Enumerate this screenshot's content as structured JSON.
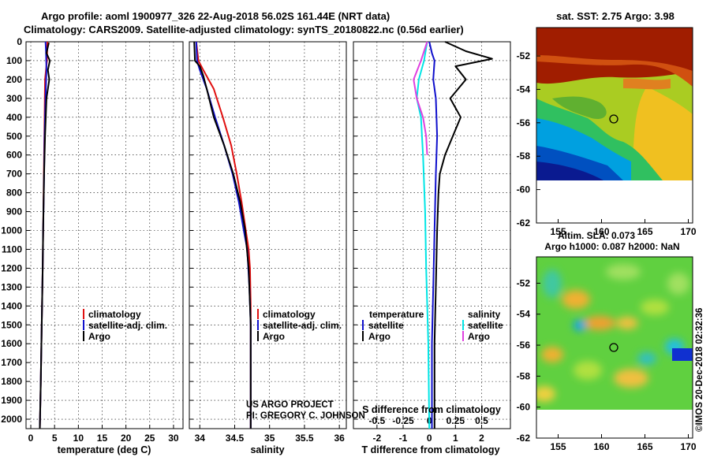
{
  "title": {
    "line1": "Argo profile: aoml 1900977_326 22-Aug-2018 56.02S 161.44E (NRT data)",
    "line2": "Climatology: CARS2009. Satellite-adjusted climatology: synTS_20180822.nc (0.56d earlier)"
  },
  "colors": {
    "climatology": "#e01010",
    "satellite": "#1010cc",
    "argo": "#000000",
    "satellite_salinity": "#00e5e5",
    "argo_salinity": "#e040e0"
  },
  "chart_data": [
    {
      "type": "line",
      "panel": "temperature",
      "xlabel": "temperature (deg C)",
      "ylabel": "",
      "xlim": [
        -1,
        32
      ],
      "ylim": [
        2050,
        0
      ],
      "xticks": [
        0,
        5,
        10,
        15,
        20,
        25,
        30
      ],
      "yticks": [
        0,
        100,
        200,
        300,
        400,
        500,
        600,
        700,
        800,
        900,
        1000,
        1100,
        1200,
        1300,
        1400,
        1500,
        1600,
        1700,
        1800,
        1900,
        2000
      ],
      "legend": [
        "climatology",
        "satellite-adj. clim.",
        "Argo"
      ],
      "series": [
        {
          "name": "climatology",
          "x": [
            3.5,
            3.4,
            3.0,
            2.9,
            2.8,
            2.7,
            2.6,
            2.5,
            2.3,
            2.1,
            1.9
          ],
          "y": [
            0,
            100,
            200,
            400,
            600,
            800,
            1000,
            1200,
            1500,
            1800,
            2050
          ]
        },
        {
          "name": "satellite-adj. clim.",
          "x": [
            3.1,
            3.2,
            3.3,
            3.1,
            2.9,
            2.8,
            2.6,
            2.5,
            2.3,
            2.1,
            1.9
          ],
          "y": [
            0,
            50,
            150,
            300,
            500,
            700,
            1000,
            1200,
            1500,
            1800,
            2050
          ]
        },
        {
          "name": "Argo",
          "x": [
            3.8,
            3.3,
            4.0,
            3.6,
            3.9,
            3.3,
            3.0,
            2.8,
            2.6,
            2.5,
            2.3,
            2.1,
            1.9
          ],
          "y": [
            5,
            60,
            100,
            150,
            200,
            300,
            500,
            700,
            1000,
            1200,
            1500,
            1800,
            2050
          ]
        }
      ]
    },
    {
      "type": "line",
      "panel": "salinity",
      "xlabel": "salinity",
      "ylabel": "",
      "xlim": [
        33.85,
        36.1
      ],
      "ylim": [
        2050,
        0
      ],
      "xticks": [
        34,
        34.5,
        35,
        35.5,
        36
      ],
      "xtick_labels": [
        "34",
        "34.5",
        "35",
        "35.5",
        "36"
      ],
      "legend": [
        "climatology",
        "satellite-adj. clim.",
        "Argo"
      ],
      "annotation": [
        "US ARGO PROJECT",
        "PI: GREGORY C. JOHNSON"
      ],
      "series": [
        {
          "name": "climatology",
          "x": [
            33.95,
            33.98,
            34.05,
            34.2,
            34.33,
            34.45,
            34.53,
            34.6,
            34.66,
            34.7,
            34.72,
            34.73,
            34.73,
            34.73
          ],
          "y": [
            0,
            100,
            150,
            250,
            400,
            550,
            700,
            850,
            1000,
            1100,
            1200,
            1400,
            1700,
            2050
          ]
        },
        {
          "name": "satellite-adj. clim.",
          "x": [
            33.95,
            33.96,
            34.0,
            34.1,
            34.22,
            34.35,
            34.47,
            34.56,
            34.63,
            34.68,
            34.71,
            34.73,
            34.73
          ],
          "y": [
            0,
            100,
            150,
            250,
            400,
            550,
            700,
            850,
            1000,
            1100,
            1300,
            1500,
            2050
          ]
        },
        {
          "name": "Argo",
          "x": [
            33.92,
            33.93,
            34.0,
            34.05,
            34.1,
            34.2,
            34.35,
            34.48,
            34.58,
            34.65,
            34.7,
            34.73,
            34.73
          ],
          "y": [
            0,
            100,
            130,
            180,
            250,
            400,
            550,
            700,
            850,
            1000,
            1200,
            1500,
            2050
          ]
        }
      ]
    },
    {
      "type": "line",
      "panel": "difference",
      "xlabel": "T difference from climatology",
      "xlabel_top": "S difference from climatology",
      "ylabel": "",
      "xlim": [
        -2.9,
        3.1
      ],
      "ylim": [
        2050,
        0
      ],
      "xticks": [
        -2,
        -1,
        0,
        1,
        2
      ],
      "xtick_labels": [
        "-2",
        "-1",
        "0",
        "1",
        "2"
      ],
      "s_xticks": [
        -0.5,
        -0.25,
        0,
        0.25,
        0.5
      ],
      "s_xtick_labels": [
        "-0.5",
        "-0.25",
        "0",
        "0.25",
        "0.5"
      ],
      "s_scale": 4,
      "legend_temperature_title": "temperature",
      "legend_salinity_title": "salinity",
      "legend_temperature": [
        "satellite",
        "Argo"
      ],
      "legend_salinity": [
        "satellite",
        "Argo"
      ],
      "series": [
        {
          "name": "temperature satellite",
          "x": [
            0.0,
            0.1,
            0.2,
            0.15,
            0.25,
            0.3,
            0.25,
            0.2,
            0.15,
            0.1,
            0.1
          ],
          "y": [
            0,
            60,
            100,
            200,
            300,
            500,
            700,
            1000,
            1300,
            1600,
            2050
          ]
        },
        {
          "name": "temperature Argo",
          "x": [
            0.6,
            1.4,
            2.4,
            1.0,
            1.4,
            0.8,
            1.2,
            0.9,
            0.6,
            0.4,
            0.35,
            0.3,
            0.25,
            0.2,
            0.2
          ],
          "y": [
            0,
            50,
            90,
            130,
            200,
            300,
            400,
            500,
            600,
            700,
            800,
            1000,
            1300,
            1600,
            2050
          ]
        },
        {
          "name": "salinity satellite",
          "x": [
            -0.02,
            -0.05,
            -0.1,
            -0.12,
            -0.08,
            -0.06,
            -0.04,
            -0.03,
            -0.01,
            0.0
          ],
          "y": [
            0,
            100,
            200,
            300,
            400,
            600,
            900,
            1200,
            1600,
            2050
          ]
        },
        {
          "name": "salinity Argo",
          "x": [
            -0.02,
            -0.08,
            -0.15,
            -0.12,
            -0.06,
            -0.03,
            -0.02
          ],
          "y": [
            0,
            100,
            200,
            300,
            400,
            500,
            600
          ]
        }
      ]
    },
    {
      "type": "heatmap",
      "panel": "sst_map",
      "title": "sat. SST: 2.75 Argo: 3.98",
      "xlim": [
        152.5,
        170.5
      ],
      "ylim": [
        -62,
        -50.3
      ],
      "xticks": [
        155,
        160,
        165,
        170
      ],
      "yticks": [
        -52,
        -54,
        -56,
        -58,
        -60,
        -62
      ],
      "argo_position": [
        161.44,
        -56.02
      ]
    },
    {
      "type": "heatmap",
      "panel": "sla_map",
      "title": "Altim. SLA: 0.073",
      "subtitle": "Argo h1000: 0.087 h2000: NaN",
      "xlim": [
        152.5,
        170.5
      ],
      "ylim": [
        -62,
        -50.3
      ],
      "xticks": [
        155,
        160,
        165,
        170
      ],
      "yticks": [
        -52,
        -54,
        -56,
        -58,
        -60,
        -62
      ],
      "argo_position": [
        161.44,
        -56.02
      ]
    }
  ],
  "footer": "©IMOS 20-Dec-2018 02:32:36"
}
